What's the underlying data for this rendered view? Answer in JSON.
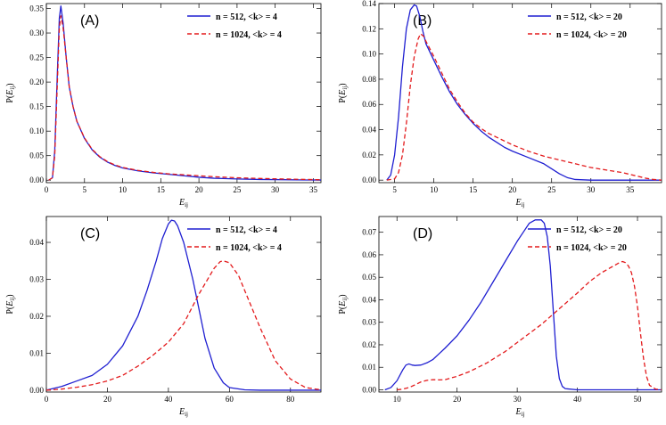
{
  "chart_data": [
    {
      "type": "line",
      "panel": "(A)",
      "xlabel_main": "E",
      "xlabel_sub": "ij",
      "ylabel_prefix": "P(",
      "ylabel_main": "E",
      "ylabel_sub": "ij",
      "ylabel_suffix": ")",
      "xlim": [
        0,
        36
      ],
      "ylim": [
        -0.005,
        0.36
      ],
      "xticks": [
        0,
        5,
        10,
        15,
        20,
        25,
        30,
        35
      ],
      "yticks": [
        0.0,
        0.05,
        0.1,
        0.15,
        0.2,
        0.25,
        0.3,
        0.35
      ],
      "xtick_labels": [
        "0",
        "5",
        "10",
        "15",
        "20",
        "25",
        "30",
        "35"
      ],
      "ytick_labels": [
        "0.00",
        "0.05",
        "0.10",
        "0.15",
        "0.20",
        "0.25",
        "0.30",
        "0.35"
      ],
      "legend_position": "top-right",
      "series": [
        {
          "name": "n = 512, <k> = 4",
          "color": "#1f1fd1",
          "dash": "solid",
          "x": [
            0.3,
            0.8,
            1.1,
            1.4,
            1.7,
            1.9,
            2.2,
            2.6,
            3.0,
            3.5,
            4.0,
            5.0,
            6.0,
            7.0,
            8.0,
            9.0,
            10.0,
            12.0,
            14.0,
            16.0,
            18.0,
            20.0,
            22.0,
            25.0,
            28.0,
            31.0,
            34.0,
            36.0
          ],
          "y": [
            0.0,
            0.005,
            0.06,
            0.2,
            0.33,
            0.355,
            0.32,
            0.25,
            0.19,
            0.15,
            0.12,
            0.085,
            0.062,
            0.047,
            0.037,
            0.03,
            0.025,
            0.019,
            0.015,
            0.012,
            0.009,
            0.006,
            0.004,
            0.0025,
            0.0015,
            0.001,
            0.0005,
            0.0003
          ]
        },
        {
          "name": "n = 1024, <k> = 4",
          "color": "#e31a1c",
          "dash": "dashed",
          "x": [
            0.3,
            0.8,
            1.1,
            1.4,
            1.7,
            1.9,
            2.2,
            2.6,
            3.0,
            3.5,
            4.0,
            5.0,
            6.0,
            7.0,
            8.0,
            9.0,
            10.0,
            12.0,
            14.0,
            16.0,
            18.0,
            20.0,
            22.0,
            25.0,
            28.0,
            31.0,
            34.0,
            36.0
          ],
          "y": [
            0.0,
            0.005,
            0.05,
            0.18,
            0.31,
            0.335,
            0.31,
            0.25,
            0.19,
            0.15,
            0.12,
            0.086,
            0.063,
            0.048,
            0.038,
            0.031,
            0.026,
            0.02,
            0.016,
            0.013,
            0.011,
            0.009,
            0.007,
            0.005,
            0.0035,
            0.0025,
            0.0015,
            0.001
          ]
        }
      ]
    },
    {
      "type": "line",
      "panel": "(B)",
      "xlabel_main": "E",
      "xlabel_sub": "ij",
      "ylabel_prefix": "P(",
      "ylabel_main": "E",
      "ylabel_sub": "ij",
      "ylabel_suffix": ")",
      "xlim": [
        3,
        39
      ],
      "ylim": [
        -0.002,
        0.14
      ],
      "xticks": [
        5,
        10,
        15,
        20,
        25,
        30,
        35
      ],
      "yticks": [
        0.0,
        0.02,
        0.04,
        0.06,
        0.08,
        0.1,
        0.12,
        0.14
      ],
      "xtick_labels": [
        "5",
        "10",
        "15",
        "20",
        "25",
        "30",
        "35"
      ],
      "ytick_labels": [
        "0.00",
        "0.02",
        "0.04",
        "0.06",
        "0.08",
        "0.10",
        "0.12",
        "0.14"
      ],
      "legend_position": "top-right",
      "series": [
        {
          "name": "n = 512, <k> = 20",
          "color": "#1f1fd1",
          "dash": "solid",
          "x": [
            4.0,
            4.5,
            5.0,
            5.5,
            6.0,
            6.5,
            7.0,
            7.5,
            7.8,
            8.2,
            8.6,
            9.0,
            10.0,
            11.0,
            12.0,
            13.0,
            14.0,
            15.0,
            16.0,
            17.0,
            18.0,
            19.0,
            20.0,
            22.0,
            24.0,
            25.0,
            26.0,
            27.0,
            28.0,
            30.0,
            34.0,
            39.0
          ],
          "y": [
            0.0,
            0.004,
            0.02,
            0.05,
            0.09,
            0.12,
            0.135,
            0.139,
            0.138,
            0.13,
            0.118,
            0.108,
            0.095,
            0.082,
            0.07,
            0.06,
            0.052,
            0.045,
            0.039,
            0.034,
            0.03,
            0.026,
            0.023,
            0.018,
            0.013,
            0.009,
            0.005,
            0.002,
            0.0005,
            0.0,
            0.0,
            0.0
          ]
        },
        {
          "name": "n = 1024, <k> = 20",
          "color": "#e31a1c",
          "dash": "dashed",
          "x": [
            4.0,
            5.0,
            5.5,
            6.0,
            6.5,
            7.0,
            7.5,
            8.0,
            8.3,
            8.7,
            9.0,
            10.0,
            11.0,
            12.0,
            13.0,
            14.0,
            15.0,
            16.0,
            17.0,
            18.0,
            20.0,
            22.0,
            24.0,
            26.0,
            28.0,
            30.0,
            32.0,
            34.0,
            35.0,
            36.0,
            37.0,
            38.0,
            39.0
          ],
          "y": [
            0.0,
            0.001,
            0.006,
            0.02,
            0.045,
            0.075,
            0.098,
            0.112,
            0.116,
            0.114,
            0.11,
            0.098,
            0.085,
            0.072,
            0.062,
            0.053,
            0.046,
            0.041,
            0.037,
            0.034,
            0.028,
            0.023,
            0.019,
            0.016,
            0.013,
            0.01,
            0.008,
            0.006,
            0.0045,
            0.003,
            0.0015,
            0.0005,
            0.0
          ]
        }
      ]
    },
    {
      "type": "line",
      "panel": "(C)",
      "xlabel_main": "E",
      "xlabel_sub": "ij",
      "ylabel_prefix": "P(",
      "ylabel_main": "E",
      "ylabel_sub": "ij",
      "ylabel_suffix": ")",
      "xlim": [
        0,
        90
      ],
      "ylim": [
        -0.0005,
        0.047
      ],
      "xticks": [
        0,
        20,
        40,
        60,
        80
      ],
      "yticks": [
        0.0,
        0.01,
        0.02,
        0.03,
        0.04
      ],
      "xtick_labels": [
        "0",
        "20",
        "40",
        "60",
        "80"
      ],
      "ytick_labels": [
        "0.00",
        "0.01",
        "0.02",
        "0.03",
        "0.04"
      ],
      "legend_position": "top-right",
      "series": [
        {
          "name": "n = 512, <k> = 4",
          "color": "#1f1fd1",
          "dash": "solid",
          "x": [
            0,
            5,
            10,
            15,
            20,
            25,
            30,
            33,
            36,
            38,
            40,
            41,
            42,
            43,
            45,
            48,
            50,
            52,
            55,
            58,
            60,
            65,
            70,
            80,
            90
          ],
          "y": [
            0.0,
            0.001,
            0.0025,
            0.004,
            0.007,
            0.012,
            0.02,
            0.027,
            0.035,
            0.041,
            0.045,
            0.046,
            0.0458,
            0.0445,
            0.04,
            0.03,
            0.022,
            0.014,
            0.006,
            0.002,
            0.0007,
            0.0001,
            0.0,
            0.0,
            0.0
          ]
        },
        {
          "name": "n = 1024, <k> = 4",
          "color": "#e31a1c",
          "dash": "dashed",
          "x": [
            0,
            5,
            10,
            15,
            20,
            25,
            30,
            35,
            40,
            45,
            50,
            55,
            57,
            58,
            60,
            63,
            65,
            70,
            75,
            80,
            85,
            90
          ],
          "y": [
            0.0,
            0.0003,
            0.0008,
            0.0015,
            0.0025,
            0.004,
            0.0065,
            0.0095,
            0.013,
            0.018,
            0.026,
            0.033,
            0.0348,
            0.035,
            0.0345,
            0.031,
            0.027,
            0.017,
            0.008,
            0.003,
            0.0007,
            0.0001
          ]
        }
      ]
    },
    {
      "type": "line",
      "panel": "(D)",
      "xlabel_main": "E",
      "xlabel_sub": "ij",
      "ylabel_prefix": "P(",
      "ylabel_main": "E",
      "ylabel_sub": "ij",
      "ylabel_suffix": ")",
      "xlim": [
        7,
        54
      ],
      "ylim": [
        -0.001,
        0.077
      ],
      "xticks": [
        10,
        20,
        30,
        40,
        50
      ],
      "yticks": [
        0.0,
        0.01,
        0.02,
        0.03,
        0.04,
        0.05,
        0.06,
        0.07
      ],
      "xtick_labels": [
        "10",
        "20",
        "30",
        "40",
        "50"
      ],
      "ytick_labels": [
        "0.00",
        "0.01",
        "0.02",
        "0.03",
        "0.04",
        "0.05",
        "0.06",
        "0.07"
      ],
      "legend_position": "top-right",
      "series": [
        {
          "name": "n = 512, <k> = 20",
          "color": "#1f1fd1",
          "dash": "solid",
          "x": [
            8.0,
            9.0,
            10.0,
            11.0,
            11.5,
            12.0,
            12.5,
            13.0,
            14.0,
            15.0,
            16.0,
            17.0,
            18.0,
            20.0,
            22.0,
            24.0,
            26.0,
            28.0,
            30.0,
            31.0,
            32.0,
            33.0,
            34.0,
            34.5,
            35.0,
            35.5,
            36.0,
            36.5,
            37.0,
            37.5,
            38.0,
            40.0,
            45.0,
            50.0,
            54.0
          ],
          "y": [
            0.0,
            0.001,
            0.004,
            0.009,
            0.011,
            0.0115,
            0.011,
            0.0108,
            0.011,
            0.012,
            0.0135,
            0.016,
            0.0185,
            0.024,
            0.031,
            0.039,
            0.048,
            0.057,
            0.066,
            0.07,
            0.074,
            0.0755,
            0.0755,
            0.074,
            0.068,
            0.055,
            0.035,
            0.015,
            0.005,
            0.0015,
            0.0005,
            0.0,
            0.0,
            0.0,
            0.0
          ]
        },
        {
          "name": "n = 1024, <k> = 20",
          "color": "#e31a1c",
          "dash": "dashed",
          "x": [
            10.0,
            11.0,
            12.0,
            13.0,
            14.0,
            15.0,
            16.0,
            17.0,
            18.0,
            20.0,
            22.0,
            25.0,
            28.0,
            31.0,
            34.0,
            37.0,
            40.0,
            42.0,
            44.0,
            45.0,
            46.0,
            47.0,
            47.5,
            48.0,
            48.5,
            49.0,
            49.5,
            50.0,
            50.5,
            51.0,
            51.5,
            52.0,
            53.0,
            54.0
          ],
          "y": [
            0.0,
            0.0003,
            0.001,
            0.0022,
            0.0035,
            0.0042,
            0.0045,
            0.0044,
            0.0045,
            0.006,
            0.008,
            0.012,
            0.017,
            0.023,
            0.029,
            0.036,
            0.043,
            0.048,
            0.052,
            0.0535,
            0.055,
            0.0565,
            0.057,
            0.0565,
            0.055,
            0.052,
            0.046,
            0.037,
            0.025,
            0.014,
            0.006,
            0.002,
            0.0003,
            0.0
          ]
        }
      ]
    }
  ]
}
